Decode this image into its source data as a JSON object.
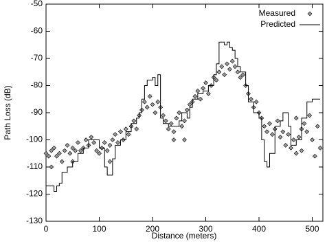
{
  "chart_data": {
    "type": "scatter",
    "xlabel": "Distance (meters)",
    "ylabel": "Path Loss (dB)",
    "xlim": [
      0,
      520
    ],
    "xticks": [
      0,
      100,
      200,
      300,
      400,
      500
    ],
    "ylim": [
      -130,
      -50
    ],
    "yticks": [
      -130,
      -120,
      -110,
      -100,
      -90,
      -80,
      -70,
      -60,
      -50
    ],
    "legend": "upper right",
    "series": [
      {
        "name": "Measured",
        "type": "scatter",
        "color": "#999999",
        "x": [
          0,
          5,
          10,
          15,
          20,
          25,
          30,
          35,
          40,
          45,
          50,
          55,
          60,
          65,
          70,
          75,
          80,
          85,
          90,
          95,
          100,
          105,
          110,
          115,
          120,
          125,
          130,
          135,
          140,
          145,
          150,
          155,
          160,
          165,
          170,
          175,
          180,
          185,
          190,
          195,
          200,
          205,
          210,
          215,
          220,
          225,
          230,
          235,
          240,
          245,
          250,
          255,
          260,
          265,
          270,
          275,
          280,
          285,
          290,
          295,
          300,
          305,
          310,
          315,
          320,
          325,
          330,
          335,
          340,
          345,
          350,
          355,
          360,
          365,
          370,
          375,
          380,
          385,
          390,
          395,
          400,
          405,
          410,
          415,
          420,
          425,
          430,
          435,
          440,
          445,
          450,
          455,
          460,
          465,
          470,
          475,
          480,
          485,
          490,
          495,
          500,
          505,
          510,
          515,
          10,
          50,
          120,
          240,
          260,
          480,
          470
        ],
        "values": [
          -105,
          -106,
          -104,
          -103,
          -106,
          -105,
          -108,
          -104,
          -102,
          -105,
          -103,
          -104,
          -101,
          -104,
          -103,
          -100,
          -102,
          -99,
          -101,
          -104,
          -105,
          -103,
          -101,
          -104,
          -102,
          -100,
          -98,
          -101,
          -97,
          -100,
          -96,
          -98,
          -95,
          -93,
          -96,
          -91,
          -89,
          -86,
          -88,
          -84,
          -87,
          -90,
          -86,
          -88,
          -91,
          -93,
          -96,
          -94,
          -97,
          -92,
          -90,
          -95,
          -93,
          -89,
          -87,
          -86,
          -84,
          -82,
          -85,
          -81,
          -79,
          -83,
          -80,
          -77,
          -78,
          -75,
          -73,
          -76,
          -72,
          -74,
          -71,
          -73,
          -75,
          -77,
          -76,
          -80,
          -83,
          -85,
          -88,
          -86,
          -90,
          -92,
          -95,
          -97,
          -94,
          -98,
          -96,
          -93,
          -99,
          -97,
          -102,
          -98,
          -103,
          -100,
          -105,
          -99,
          -96,
          -94,
          -97,
          -91,
          -100,
          -106,
          -95,
          -103,
          -110,
          -108,
          -108,
          -100,
          -100,
          -104,
          -92
        ]
      },
      {
        "name": "Predicted",
        "type": "step",
        "color": "#000000",
        "x": [
          0,
          15,
          20,
          25,
          30,
          40,
          50,
          60,
          70,
          80,
          90,
          100,
          110,
          115,
          125,
          130,
          140,
          150,
          160,
          170,
          175,
          180,
          185,
          190,
          200,
          205,
          210,
          215,
          220,
          230,
          240,
          250,
          255,
          260,
          265,
          270,
          275,
          285,
          295,
          305,
          315,
          320,
          325,
          335,
          340,
          345,
          350,
          355,
          360,
          365,
          375,
          380,
          390,
          400,
          405,
          410,
          415,
          420,
          430,
          440,
          445,
          455,
          460,
          470,
          480,
          490,
          500,
          510
        ],
        "values": [
          -117,
          -119,
          -117,
          -116,
          -112,
          -110,
          -108,
          -105,
          -103,
          -100,
          -100,
          -103,
          -110,
          -113,
          -107,
          -102,
          -100,
          -97,
          -94,
          -92,
          -90,
          -85,
          -80,
          -78,
          -77,
          -80,
          -76,
          -92,
          -94,
          -95,
          -95,
          -93,
          -90,
          -90,
          -92,
          -88,
          -85,
          -83,
          -82,
          -80,
          -76,
          -72,
          -64,
          -65,
          -64,
          -66,
          -67,
          -70,
          -73,
          -75,
          -80,
          -86,
          -90,
          -92,
          -100,
          -108,
          -110,
          -105,
          -95,
          -93,
          -90,
          -95,
          -102,
          -100,
          -92,
          -86,
          -85,
          -85
        ]
      }
    ]
  }
}
